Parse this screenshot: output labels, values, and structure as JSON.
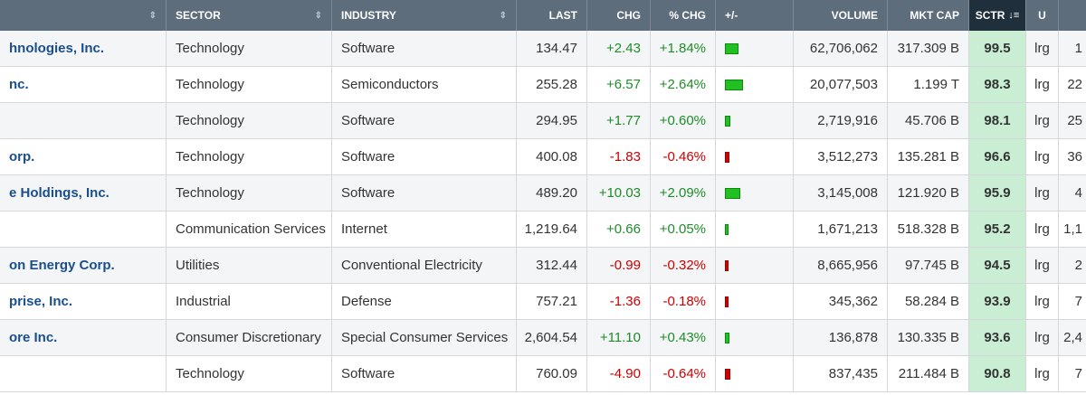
{
  "header": {
    "sector": "SECTOR",
    "industry": "INDUSTRY",
    "last": "LAST",
    "chg": "CHG",
    "pct_chg": "% CHG",
    "plus_minus": "+/-",
    "volume": "VOLUME",
    "mkt_cap": "MKT CAP",
    "sctr": "SCTR",
    "u": "U"
  },
  "rows": [
    {
      "name": "hnologies, Inc.",
      "sector": "Technology",
      "industry": "Software",
      "last": "134.47",
      "chg": "+2.43",
      "pct": "+1.84%",
      "dir": "up",
      "bar_pct": 1.84,
      "volume": "62,706,062",
      "mktcap": "317.309 B",
      "sctr": "99.5",
      "u": "lrg",
      "extra": "1"
    },
    {
      "name": "nc.",
      "sector": "Technology",
      "industry": "Semiconductors",
      "last": "255.28",
      "chg": "+6.57",
      "pct": "+2.64%",
      "dir": "up",
      "bar_pct": 2.64,
      "volume": "20,077,503",
      "mktcap": "1.199 T",
      "sctr": "98.3",
      "u": "lrg",
      "extra": "22"
    },
    {
      "name": "",
      "sector": "Technology",
      "industry": "Software",
      "last": "294.95",
      "chg": "+1.77",
      "pct": "+0.60%",
      "dir": "up",
      "bar_pct": 0.6,
      "volume": "2,719,916",
      "mktcap": "45.706 B",
      "sctr": "98.1",
      "u": "lrg",
      "extra": "25"
    },
    {
      "name": "orp.",
      "sector": "Technology",
      "industry": "Software",
      "last": "400.08",
      "chg": "-1.83",
      "pct": "-0.46%",
      "dir": "down",
      "bar_pct": 0.46,
      "volume": "3,512,273",
      "mktcap": "135.281 B",
      "sctr": "96.6",
      "u": "lrg",
      "extra": "36"
    },
    {
      "name": "e Holdings, Inc.",
      "sector": "Technology",
      "industry": "Software",
      "last": "489.20",
      "chg": "+10.03",
      "pct": "+2.09%",
      "dir": "up",
      "bar_pct": 2.09,
      "volume": "3,145,008",
      "mktcap": "121.920 B",
      "sctr": "95.9",
      "u": "lrg",
      "extra": "4"
    },
    {
      "name": "",
      "sector": "Communication Services",
      "industry": "Internet",
      "last": "1,219.64",
      "chg": "+0.66",
      "pct": "+0.05%",
      "dir": "up",
      "bar_pct": 0.05,
      "volume": "1,671,213",
      "mktcap": "518.328 B",
      "sctr": "95.2",
      "u": "lrg",
      "extra": "1,1"
    },
    {
      "name": "on Energy Corp.",
      "sector": "Utilities",
      "industry": "Conventional Electricity",
      "last": "312.44",
      "chg": "-0.99",
      "pct": "-0.32%",
      "dir": "down",
      "bar_pct": 0.32,
      "volume": "8,665,956",
      "mktcap": "97.745 B",
      "sctr": "94.5",
      "u": "lrg",
      "extra": "2"
    },
    {
      "name": "prise, Inc.",
      "sector": "Industrial",
      "industry": "Defense",
      "last": "757.21",
      "chg": "-1.36",
      "pct": "-0.18%",
      "dir": "down",
      "bar_pct": 0.18,
      "volume": "345,362",
      "mktcap": "58.284 B",
      "sctr": "93.9",
      "u": "lrg",
      "extra": "7"
    },
    {
      "name": "ore Inc.",
      "sector": "Consumer Discretionary",
      "industry": "Special Consumer Services",
      "last": "2,604.54",
      "chg": "+11.10",
      "pct": "+0.43%",
      "dir": "up",
      "bar_pct": 0.43,
      "volume": "136,878",
      "mktcap": "130.335 B",
      "sctr": "93.6",
      "u": "lrg",
      "extra": "2,4"
    },
    {
      "name": "",
      "sector": "Technology",
      "industry": "Software",
      "last": "760.09",
      "chg": "-4.90",
      "pct": "-0.64%",
      "dir": "down",
      "bar_pct": 0.64,
      "volume": "837,435",
      "mktcap": "211.484 B",
      "sctr": "90.8",
      "u": "lrg",
      "extra": "7"
    }
  ]
}
